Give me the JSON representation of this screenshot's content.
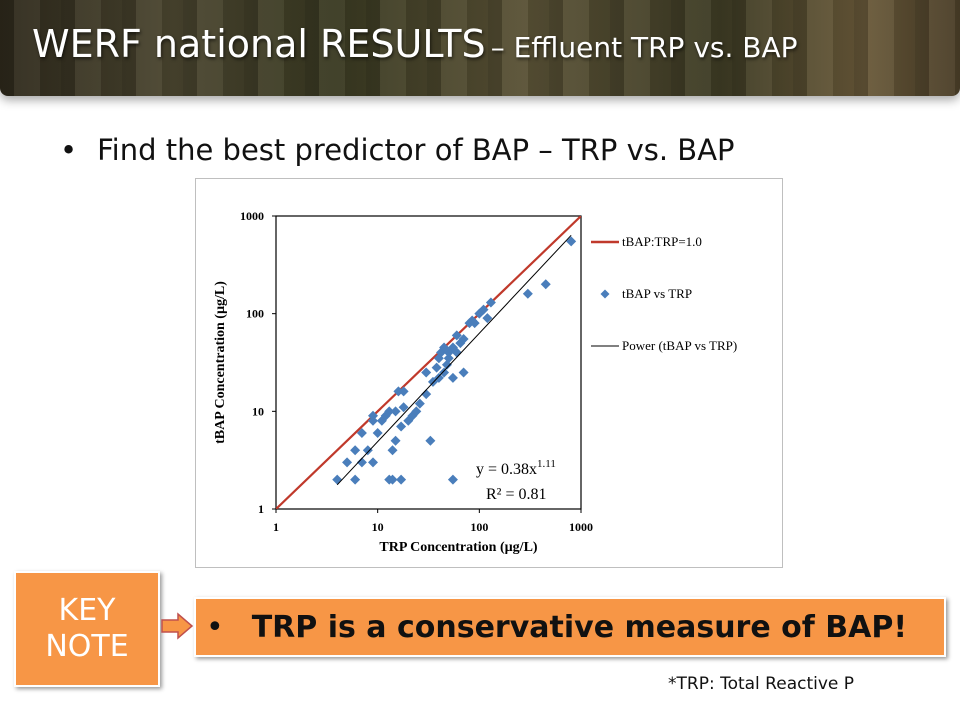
{
  "header": {
    "title": "WERF national RESULTS",
    "subtitle": "– Effluent TRP vs. BAP"
  },
  "bullet": "Find the best predictor of BAP – TRP vs. BAP",
  "chart_data": {
    "type": "scatter",
    "xlabel": "TRP Concentration (µg/L)",
    "ylabel": "tBAP Concentration  (µg/L)",
    "xscale": "log",
    "yscale": "log",
    "xlim": [
      1,
      1000
    ],
    "ylim": [
      1,
      1000
    ],
    "xticks": [
      1,
      10,
      100,
      1000
    ],
    "yticks": [
      1,
      10,
      100,
      1000
    ],
    "legend": "right",
    "series": [
      {
        "name": "tBAP:TRP=1.0",
        "color": "#c0392b",
        "mark": "line",
        "x": [
          1,
          1000
        ],
        "values": [
          1,
          1000
        ]
      },
      {
        "name": "tBAP vs TRP",
        "color": "#4a7ebb",
        "mark": "marker",
        "x": [
          4,
          6,
          13,
          14,
          17,
          55,
          5,
          7,
          9,
          6,
          8,
          14,
          15,
          33,
          7,
          10,
          17,
          11,
          9,
          12,
          20,
          22,
          13,
          15,
          18,
          9,
          24,
          26,
          30,
          16,
          18,
          35,
          40,
          30,
          45,
          55,
          70,
          38,
          48,
          50,
          42,
          60,
          45,
          55,
          65,
          70,
          60,
          80,
          85,
          100,
          110,
          130,
          120,
          90,
          300,
          450,
          800,
          40,
          50
        ],
        "values": [
          2,
          2,
          2,
          2,
          2,
          2,
          3,
          3,
          3,
          4,
          4,
          4,
          5,
          5,
          6,
          6,
          7,
          8,
          8,
          9,
          8,
          9,
          10,
          10,
          11,
          9,
          10,
          12,
          15,
          16,
          16,
          20,
          22,
          25,
          25,
          22,
          25,
          28,
          30,
          35,
          40,
          40,
          45,
          45,
          50,
          55,
          60,
          80,
          85,
          100,
          110,
          130,
          90,
          80,
          160,
          200,
          550,
          35,
          40
        ]
      },
      {
        "name": "Power (tBAP vs TRP)",
        "color": "#000000",
        "mark": "line",
        "x": [
          4,
          800
        ],
        "values": [
          1.77,
          634
        ]
      }
    ],
    "annotations": {
      "equation": "y = 0.38x",
      "exponent": "1.11",
      "r2": "R² = 0.81"
    }
  },
  "keynote": {
    "line1": "KEY",
    "line2": "NOTE"
  },
  "takeaway": "TRP is a conservative measure of BAP!",
  "footnote": "*TRP: Total Reactive P"
}
